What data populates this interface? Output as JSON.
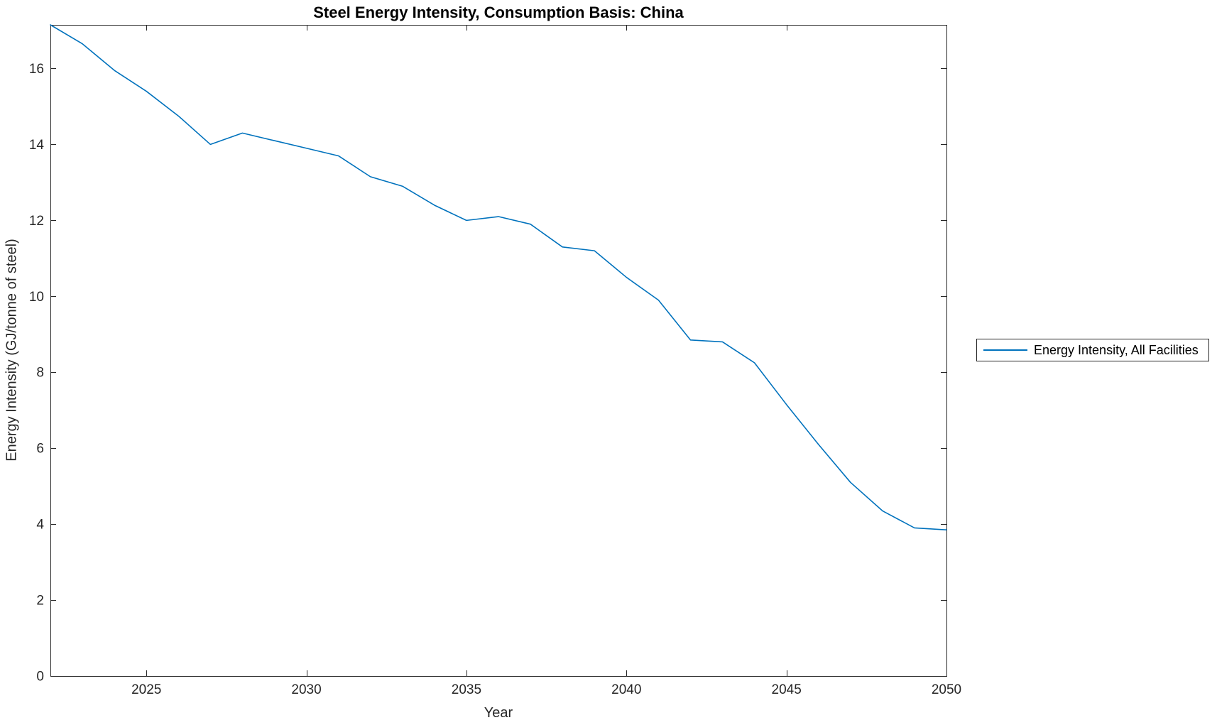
{
  "chart_data": {
    "type": "line",
    "title": "Steel Energy Intensity, Consumption Basis: China",
    "xlabel": "Year",
    "ylabel": "Energy Intensity (GJ/tonne of steel)",
    "xlim": [
      2022,
      2050
    ],
    "ylim": [
      0,
      17.15
    ],
    "xticks": [
      2025,
      2030,
      2035,
      2040,
      2045,
      2050
    ],
    "yticks": [
      0,
      2,
      4,
      6,
      8,
      10,
      12,
      14,
      16
    ],
    "grid": false,
    "legend_position": "right-outside",
    "series": [
      {
        "name": "Energy Intensity, All Facilities",
        "color": "#0072BD",
        "x": [
          2022,
          2023,
          2024,
          2025,
          2026,
          2027,
          2028,
          2029,
          2030,
          2031,
          2032,
          2033,
          2034,
          2035,
          2036,
          2037,
          2038,
          2039,
          2040,
          2041,
          2042,
          2043,
          2044,
          2045,
          2046,
          2047,
          2048,
          2049,
          2050
        ],
        "values": [
          17.15,
          16.65,
          15.95,
          15.4,
          14.75,
          14.0,
          14.3,
          14.1,
          13.9,
          13.7,
          13.15,
          12.9,
          12.4,
          12.0,
          12.1,
          11.9,
          11.3,
          11.2,
          10.5,
          9.9,
          8.85,
          8.8,
          8.25,
          7.15,
          6.1,
          5.1,
          4.35,
          3.9,
          3.85
        ]
      }
    ]
  },
  "colors": {
    "line": "#0072BD",
    "axis": "#262626",
    "tick_text": "#262626",
    "title_text": "#000000",
    "background": "#ffffff"
  }
}
